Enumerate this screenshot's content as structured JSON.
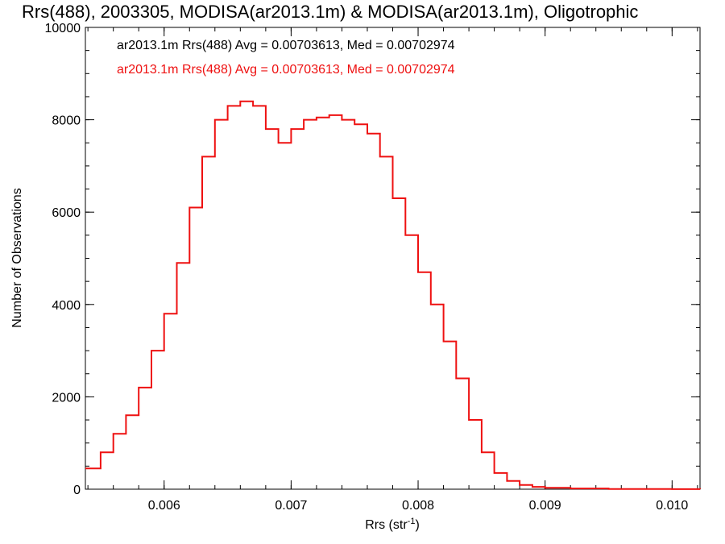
{
  "chart_data": {
    "type": "line",
    "step": true,
    "title": "Rrs(488), 2003305, MODISA(ar2013.1m) & MODISA(ar2013.1m), Oligotrophic",
    "xlabel_main": "Rrs (str",
    "xlabel_sup": "-1",
    "xlabel_end": ")",
    "ylabel": "Number of Observations",
    "xlim": [
      0.00538,
      0.01022
    ],
    "ylim": [
      0,
      10000
    ],
    "x_ticks": [
      0.006,
      0.007,
      0.008,
      0.009,
      0.01
    ],
    "x_tick_labels": [
      "0.006",
      "0.007",
      "0.008",
      "0.009",
      "0.010"
    ],
    "x_minor_step": 0.0002,
    "y_ticks": [
      0,
      2000,
      4000,
      6000,
      8000,
      10000
    ],
    "y_tick_labels": [
      "0",
      "2000",
      "4000",
      "6000",
      "8000",
      "10000"
    ],
    "y_minor_step": 500,
    "legend_position": "top-left",
    "legend": [
      {
        "text": "ar2013.1m Rrs(488) Avg = 0.00703613, Med = 0.00702974",
        "color": "#000000"
      },
      {
        "text": "ar2013.1m Rrs(488) Avg = 0.00703613, Med = 0.00702974",
        "color": "#ee1111"
      }
    ],
    "series": [
      {
        "color": "#ee1111",
        "x": [
          0.00538,
          0.0055,
          0.0056,
          0.0057,
          0.0058,
          0.0059,
          0.006,
          0.0061,
          0.0062,
          0.0063,
          0.0064,
          0.0065,
          0.0066,
          0.0067,
          0.0068,
          0.0069,
          0.007,
          0.0071,
          0.0072,
          0.0073,
          0.0074,
          0.0075,
          0.0076,
          0.0077,
          0.0078,
          0.0079,
          0.008,
          0.0081,
          0.0082,
          0.0083,
          0.0084,
          0.0085,
          0.0086,
          0.0087,
          0.0088,
          0.0089,
          0.009,
          0.0092,
          0.0095,
          0.01,
          0.01022
        ],
        "y": [
          450,
          800,
          1200,
          1600,
          2200,
          3000,
          3800,
          4900,
          6100,
          7200,
          8000,
          8300,
          8400,
          8300,
          7800,
          7500,
          7800,
          8000,
          8050,
          8100,
          8000,
          7900,
          7700,
          7200,
          6300,
          5500,
          4700,
          4000,
          3200,
          2400,
          1500,
          800,
          350,
          180,
          90,
          50,
          30,
          15,
          5,
          2,
          0
        ]
      }
    ]
  }
}
